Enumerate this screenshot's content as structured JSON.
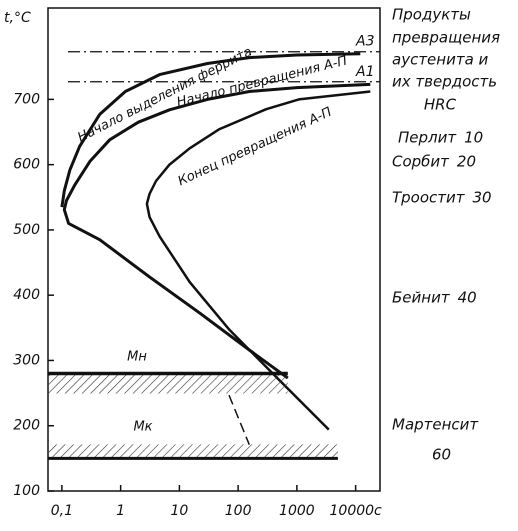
{
  "chart_data": {
    "type": "line",
    "y_label": "t,°C",
    "xlog": true,
    "xlim": [
      0.058,
      26000
    ],
    "ylim": [
      100,
      840
    ],
    "xticks": [
      {
        "value": 0.1,
        "label": "0,1"
      },
      1,
      10,
      100,
      1000,
      {
        "value": 10000,
        "label": "10000c"
      }
    ],
    "yticks": [
      100,
      200,
      300,
      400,
      500,
      600,
      700
    ],
    "color": "#111111",
    "series": [
      {
        "name": "Начало выделения феррита",
        "style": "solid",
        "width": 3,
        "x": [
          12000,
          1000,
          155,
          30,
          4.6,
          1.2,
          0.44,
          0.2,
          0.137,
          0.11,
          0.1
        ],
        "values": [
          770,
          768,
          764,
          755,
          738,
          712,
          677,
          628,
          592,
          560,
          535
        ]
      },
      {
        "name": "Начало превращения А-П",
        "style": "solid",
        "width": 3,
        "x": [
          17800,
          1000,
          155,
          30,
          6.8,
          2,
          0.65,
          0.3,
          0.166,
          0.12,
          0.11,
          0.13,
          0.44,
          3.1,
          21.9,
          155,
          700
        ],
        "values": [
          723,
          718,
          712,
          700,
          684,
          665,
          638,
          605,
          569,
          545,
          531,
          510,
          485,
          428,
          373,
          316,
          273
        ]
      },
      {
        "name": "Конец превращения А-П",
        "style": "solid",
        "width": 2.5,
        "x": [
          17800,
          1080,
          300,
          47,
          15,
          6.8,
          4,
          3.1,
          2.8,
          3.1,
          4.6,
          15,
          71,
          500,
          3500
        ],
        "values": [
          712,
          700,
          685,
          654,
          625,
          600,
          575,
          555,
          540,
          520,
          490,
          420,
          347,
          270,
          194
        ]
      },
      {
        "style": "dashed",
        "width": 1.5,
        "x": [
          70,
          155
        ],
        "values": [
          247,
          171
        ]
      },
      {
        "name": "Mн",
        "style": "solid",
        "width": 3.5,
        "hatch": "below",
        "x": [
          0.058,
          700
        ],
        "values": [
          280,
          280
        ]
      },
      {
        "name": "Mк",
        "style": "solid",
        "width": 3,
        "hatch": "above",
        "x": [
          0.058,
          5000
        ],
        "values": [
          150,
          150
        ]
      }
    ],
    "reference_lines": [
      {
        "name": "A3",
        "value": 773
      },
      {
        "name": "A1",
        "value": 727
      }
    ],
    "products": {
      "title": [
        "Продукты",
        "превращения",
        "аустенита и",
        "их твердость",
        "HRC"
      ],
      "items": [
        {
          "name": "Перлит",
          "hrc": 10
        },
        {
          "name": "Сорбит",
          "hrc": 20
        },
        {
          "name": "Троостит",
          "hrc": 30
        },
        {
          "name": "Бейнит",
          "hrc": 40
        },
        {
          "name": "Мартенсит",
          "hrc": 60
        }
      ]
    }
  }
}
